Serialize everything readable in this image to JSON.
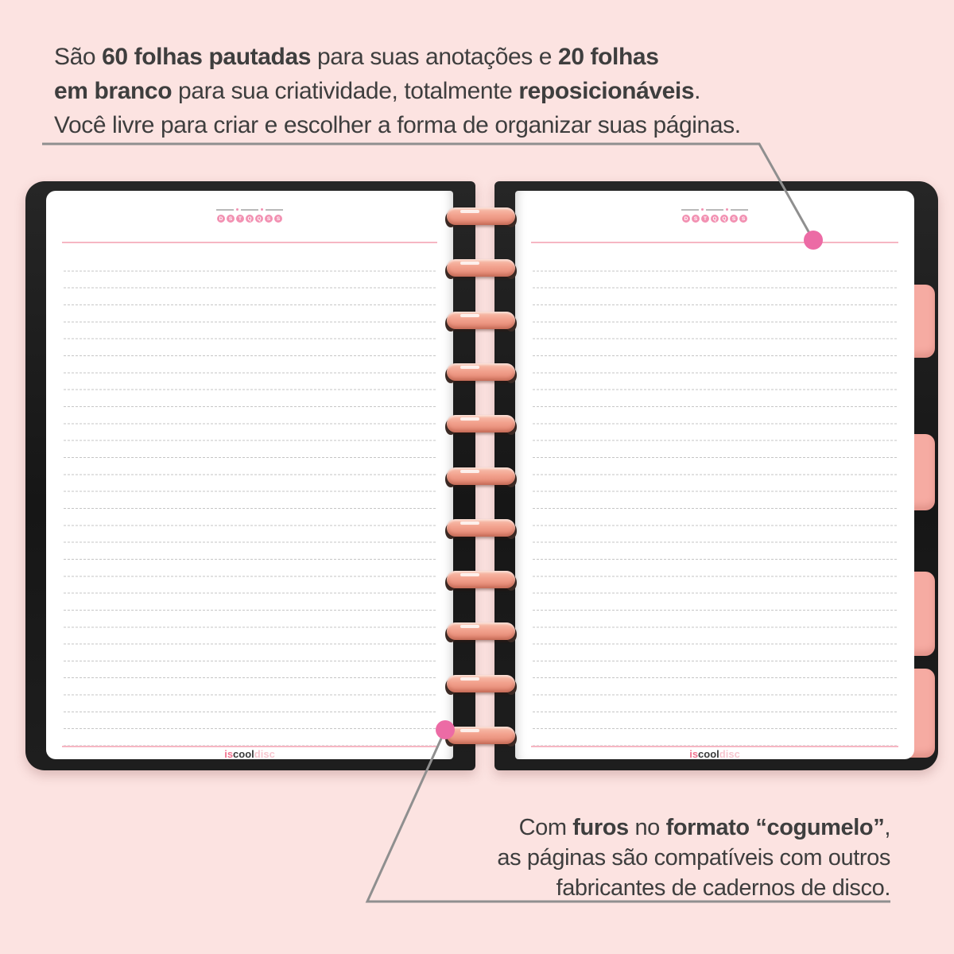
{
  "colors": {
    "background": "#fce3e1",
    "page": "#ffffff",
    "text": "#3e3e3e",
    "leader_gray": "#8f8f8f",
    "dot_pink": "#ec6ba5",
    "accent_pink": "#f291b2",
    "rule_pink": "#f6b6c3",
    "line_gray": "#c6c6c6",
    "tab_pink": "#f6aba2",
    "disc_main": "#f2a18d",
    "disc_dark": "#3b2c27",
    "logo_pink": "#f2738f",
    "logo_dark": "#3a3a3a",
    "logo_light": "#f7c6cf"
  },
  "top_annotation": {
    "lines": [
      {
        "segments": [
          {
            "t": "São ",
            "b": false
          },
          {
            "t": "60 folhas pautadas",
            "b": true
          },
          {
            "t": " para suas anotações e ",
            "b": false
          },
          {
            "t": "20 folhas",
            "b": true
          }
        ]
      },
      {
        "segments": [
          {
            "t": "em branco",
            "b": true
          },
          {
            "t": " para sua criatividade, totalmente ",
            "b": false
          },
          {
            "t": "reposicionáveis",
            "b": true
          },
          {
            "t": ".",
            "b": false
          }
        ]
      },
      {
        "segments": [
          {
            "t": "Você livre para criar e escolher a forma de organizar suas páginas.",
            "b": false
          }
        ]
      }
    ]
  },
  "bottom_annotation": {
    "lines": [
      {
        "segments": [
          {
            "t": "Com ",
            "b": false
          },
          {
            "t": "furos",
            "b": true
          },
          {
            "t": " no ",
            "b": false
          },
          {
            "t": "formato “cogumelo”",
            "b": true
          },
          {
            "t": ",",
            "b": false
          }
        ]
      },
      {
        "segments": [
          {
            "t": "as páginas são compatíveis com outros",
            "b": false
          }
        ]
      },
      {
        "segments": [
          {
            "t": "fabricantes de cadernos de disco.",
            "b": false
          }
        ]
      }
    ]
  },
  "page_header": {
    "date_segments": 3,
    "weekdays": [
      "D",
      "S",
      "T",
      "Q",
      "Q",
      "S",
      "S"
    ]
  },
  "logo": {
    "part1": "is",
    "part2": "cool",
    "part3": "disc"
  },
  "notebook": {
    "discs_count": 11,
    "tabs_count": 4
  }
}
